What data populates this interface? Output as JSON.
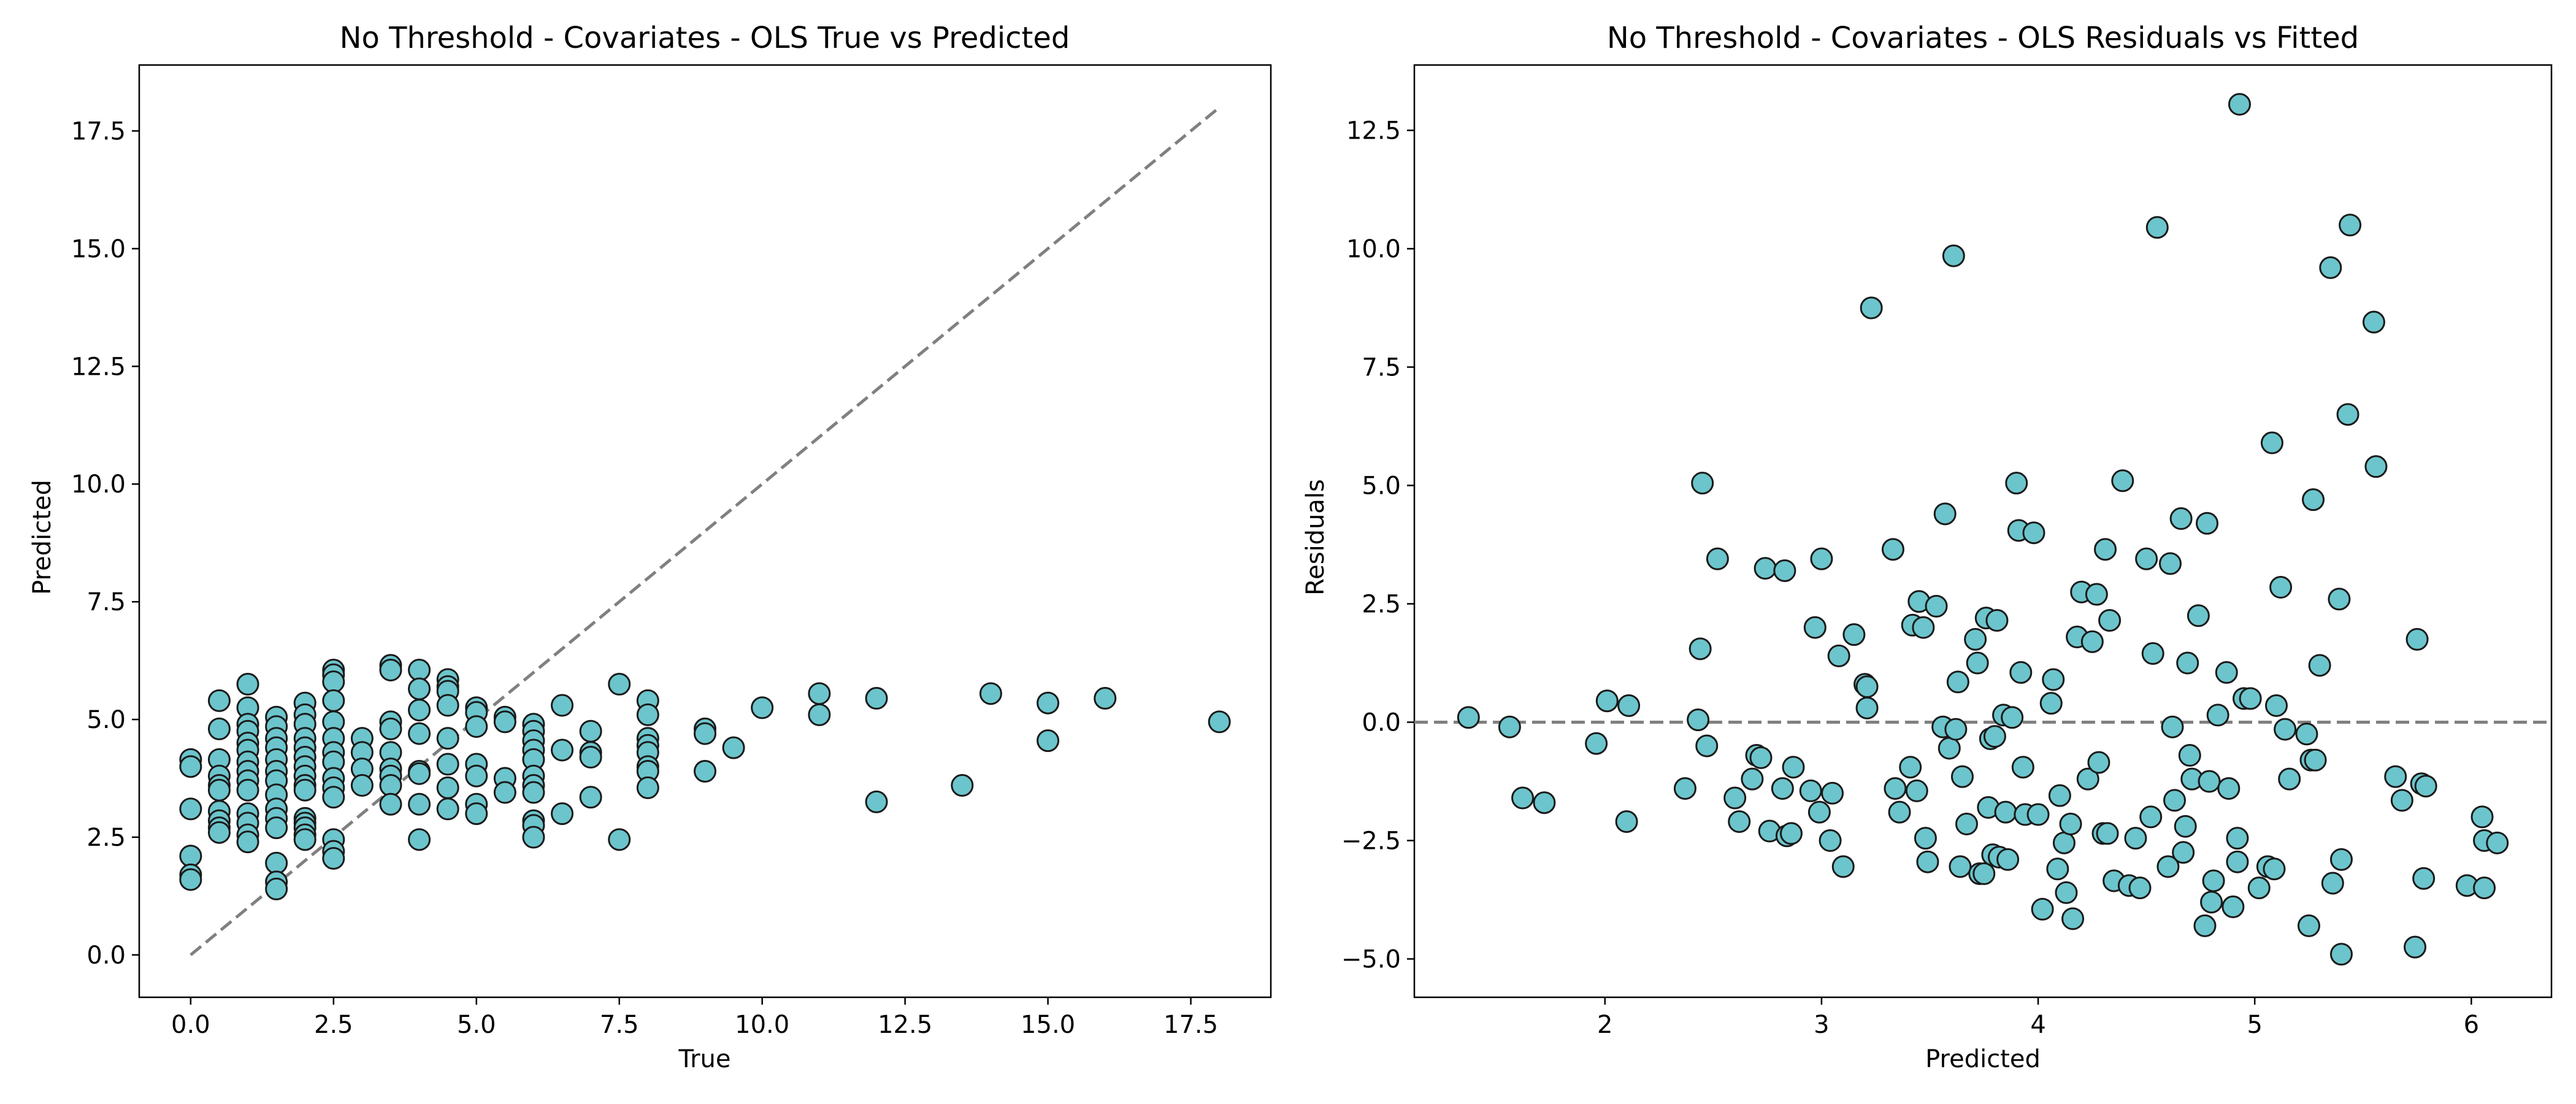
{
  "style": {
    "marker_fill": "#6cc5cc",
    "marker_edge": "#1a1a1a",
    "ref_line": "#808080",
    "axes": "#000000"
  },
  "chart_data": [
    {
      "type": "scatter",
      "title": "No Threshold - Covariates - OLS True vs Predicted",
      "xlabel": "True",
      "ylabel": "Predicted",
      "xlim": [
        -0.9,
        18.9
      ],
      "ylim": [
        -0.9,
        18.9
      ],
      "xticks": [
        0,
        2.5,
        5,
        7.5,
        10,
        12.5,
        15,
        17.5
      ],
      "yticks": [
        0,
        2.5,
        5,
        7.5,
        10,
        12.5,
        15,
        17.5
      ],
      "xtick_labels": [
        "0.0",
        "2.5",
        "5.0",
        "7.5",
        "10.0",
        "12.5",
        "15.0",
        "17.5"
      ],
      "ytick_labels": [
        "0.0",
        "2.5",
        "5.0",
        "7.5",
        "10.0",
        "12.5",
        "15.0",
        "17.5"
      ],
      "reference_line": {
        "from": [
          0,
          0
        ],
        "to": [
          18,
          18
        ],
        "style": "dashed"
      },
      "points": [
        [
          0,
          4.15
        ],
        [
          0,
          4.0
        ],
        [
          0,
          3.1
        ],
        [
          0,
          2.1
        ],
        [
          0,
          1.7
        ],
        [
          0,
          1.6
        ],
        [
          0.5,
          5.4
        ],
        [
          0.5,
          4.8
        ],
        [
          0.5,
          4.15
        ],
        [
          0.5,
          3.8
        ],
        [
          0.5,
          3.6
        ],
        [
          0.5,
          3.5
        ],
        [
          0.5,
          3.05
        ],
        [
          0.5,
          2.85
        ],
        [
          0.5,
          2.7
        ],
        [
          0.5,
          2.6
        ],
        [
          1,
          5.75
        ],
        [
          1,
          5.25
        ],
        [
          1,
          4.9
        ],
        [
          1,
          4.75
        ],
        [
          1,
          4.5
        ],
        [
          1,
          4.35
        ],
        [
          1,
          4.1
        ],
        [
          1,
          3.9
        ],
        [
          1,
          3.7
        ],
        [
          1,
          3.5
        ],
        [
          1,
          3.0
        ],
        [
          1,
          2.8
        ],
        [
          1,
          2.55
        ],
        [
          1,
          2.4
        ],
        [
          1.5,
          5.05
        ],
        [
          1.5,
          4.85
        ],
        [
          1.5,
          4.6
        ],
        [
          1.5,
          4.4
        ],
        [
          1.5,
          4.15
        ],
        [
          1.5,
          3.9
        ],
        [
          1.5,
          3.7
        ],
        [
          1.5,
          3.4
        ],
        [
          1.5,
          3.1
        ],
        [
          1.5,
          2.9
        ],
        [
          1.5,
          2.7
        ],
        [
          1.5,
          1.95
        ],
        [
          1.5,
          1.55
        ],
        [
          1.5,
          1.4
        ],
        [
          2,
          5.35
        ],
        [
          2,
          5.1
        ],
        [
          2,
          4.9
        ],
        [
          2,
          4.6
        ],
        [
          2,
          4.4
        ],
        [
          2,
          4.2
        ],
        [
          2,
          4.0
        ],
        [
          2,
          3.8
        ],
        [
          2,
          3.6
        ],
        [
          2,
          3.5
        ],
        [
          2,
          2.9
        ],
        [
          2,
          2.8
        ],
        [
          2,
          2.7
        ],
        [
          2,
          2.55
        ],
        [
          2,
          2.45
        ],
        [
          2.5,
          6.05
        ],
        [
          2.5,
          5.95
        ],
        [
          2.5,
          5.8
        ],
        [
          2.5,
          5.4
        ],
        [
          2.5,
          4.95
        ],
        [
          2.5,
          4.6
        ],
        [
          2.5,
          4.3
        ],
        [
          2.5,
          4.1
        ],
        [
          2.5,
          3.75
        ],
        [
          2.5,
          3.55
        ],
        [
          2.5,
          3.35
        ],
        [
          2.5,
          2.45
        ],
        [
          2.5,
          2.2
        ],
        [
          2.5,
          2.05
        ],
        [
          3,
          4.6
        ],
        [
          3,
          4.3
        ],
        [
          3,
          3.95
        ],
        [
          3,
          3.6
        ],
        [
          3.5,
          6.15
        ],
        [
          3.5,
          6.05
        ],
        [
          3.5,
          4.95
        ],
        [
          3.5,
          4.8
        ],
        [
          3.5,
          4.3
        ],
        [
          3.5,
          3.95
        ],
        [
          3.5,
          3.8
        ],
        [
          3.5,
          3.6
        ],
        [
          3.5,
          3.2
        ],
        [
          4,
          6.05
        ],
        [
          4,
          5.65
        ],
        [
          4,
          5.2
        ],
        [
          4,
          4.7
        ],
        [
          4,
          3.9
        ],
        [
          4,
          3.85
        ],
        [
          4,
          3.2
        ],
        [
          4,
          2.45
        ],
        [
          4.5,
          5.85
        ],
        [
          4.5,
          5.7
        ],
        [
          4.5,
          5.6
        ],
        [
          4.5,
          5.3
        ],
        [
          4.5,
          4.6
        ],
        [
          4.5,
          4.05
        ],
        [
          4.5,
          3.55
        ],
        [
          4.5,
          3.1
        ],
        [
          5,
          5.25
        ],
        [
          5,
          5.15
        ],
        [
          5,
          4.85
        ],
        [
          5,
          4.05
        ],
        [
          5,
          3.8
        ],
        [
          5,
          3.2
        ],
        [
          5,
          3.0
        ],
        [
          5.5,
          5.05
        ],
        [
          5.5,
          4.95
        ],
        [
          5.5,
          3.75
        ],
        [
          5.5,
          3.45
        ],
        [
          6,
          4.9
        ],
        [
          6,
          4.75
        ],
        [
          6,
          4.55
        ],
        [
          6,
          4.35
        ],
        [
          6,
          4.15
        ],
        [
          6,
          3.8
        ],
        [
          6,
          3.6
        ],
        [
          6,
          3.45
        ],
        [
          6,
          2.85
        ],
        [
          6,
          2.75
        ],
        [
          6,
          2.5
        ],
        [
          6.5,
          5.3
        ],
        [
          6.5,
          4.35
        ],
        [
          6.5,
          3.0
        ],
        [
          7,
          4.75
        ],
        [
          7,
          4.3
        ],
        [
          7,
          4.2
        ],
        [
          7,
          3.35
        ],
        [
          7.5,
          5.75
        ],
        [
          7.5,
          2.45
        ],
        [
          8,
          5.4
        ],
        [
          8,
          5.1
        ],
        [
          8,
          4.6
        ],
        [
          8,
          4.45
        ],
        [
          8,
          4.3
        ],
        [
          8,
          4.0
        ],
        [
          8,
          3.9
        ],
        [
          8,
          3.55
        ],
        [
          9,
          4.8
        ],
        [
          9,
          4.7
        ],
        [
          9,
          3.9
        ],
        [
          9.5,
          4.4
        ],
        [
          10,
          5.25
        ],
        [
          11,
          5.55
        ],
        [
          11,
          5.1
        ],
        [
          12,
          5.45
        ],
        [
          12,
          3.25
        ],
        [
          13.5,
          3.6
        ],
        [
          14,
          5.55
        ],
        [
          15,
          5.35
        ],
        [
          15,
          4.55
        ],
        [
          16,
          5.45
        ],
        [
          18,
          4.95
        ]
      ]
    },
    {
      "type": "scatter",
      "title": "No Threshold - Covariates - OLS Residuals vs Fitted",
      "xlabel": "Predicted",
      "ylabel": "Residuals",
      "xlim": [
        1.12,
        6.37
      ],
      "ylim": [
        -5.81,
        13.88
      ],
      "xticks": [
        2,
        3,
        4,
        5,
        6
      ],
      "yticks": [
        -5,
        -2.5,
        0,
        2.5,
        5,
        7.5,
        10,
        12.5
      ],
      "xtick_labels": [
        "2",
        "3",
        "4",
        "5",
        "6"
      ],
      "ytick_labels": [
        "−5.0",
        "−2.5",
        "0.0",
        "2.5",
        "5.0",
        "7.5",
        "10.0",
        "12.5"
      ],
      "reference_line": {
        "y": 0,
        "style": "dashed"
      },
      "points": [
        [
          1.37,
          0.1
        ],
        [
          1.56,
          -0.1
        ],
        [
          1.62,
          -1.6
        ],
        [
          1.72,
          -1.7
        ],
        [
          1.96,
          -0.45
        ],
        [
          2.01,
          0.45
        ],
        [
          2.1,
          -2.1
        ],
        [
          2.11,
          0.35
        ],
        [
          2.37,
          -1.4
        ],
        [
          2.43,
          0.05
        ],
        [
          2.44,
          1.55
        ],
        [
          2.45,
          5.05
        ],
        [
          2.47,
          -0.5
        ],
        [
          2.52,
          3.45
        ],
        [
          2.6,
          -1.6
        ],
        [
          2.62,
          -2.1
        ],
        [
          2.68,
          -1.2
        ],
        [
          2.7,
          -0.7
        ],
        [
          2.72,
          -0.75
        ],
        [
          2.74,
          3.25
        ],
        [
          2.76,
          -2.3
        ],
        [
          2.82,
          -1.4
        ],
        [
          2.83,
          3.2
        ],
        [
          2.84,
          -2.4
        ],
        [
          2.86,
          -2.35
        ],
        [
          2.87,
          -0.95
        ],
        [
          2.95,
          -1.45
        ],
        [
          2.97,
          2.0
        ],
        [
          2.99,
          -1.9
        ],
        [
          3.0,
          3.45
        ],
        [
          3.04,
          -2.5
        ],
        [
          3.05,
          -1.5
        ],
        [
          3.08,
          1.4
        ],
        [
          3.1,
          -3.05
        ],
        [
          3.15,
          1.85
        ],
        [
          3.2,
          0.8
        ],
        [
          3.21,
          0.75
        ],
        [
          3.21,
          0.3
        ],
        [
          3.23,
          8.75
        ],
        [
          3.33,
          3.65
        ],
        [
          3.34,
          -1.4
        ],
        [
          3.36,
          -1.9
        ],
        [
          3.41,
          -0.95
        ],
        [
          3.42,
          2.05
        ],
        [
          3.44,
          -1.45
        ],
        [
          3.45,
          2.55
        ],
        [
          3.47,
          2.0
        ],
        [
          3.48,
          -2.45
        ],
        [
          3.49,
          -2.95
        ],
        [
          3.53,
          2.45
        ],
        [
          3.56,
          -0.1
        ],
        [
          3.57,
          4.4
        ],
        [
          3.59,
          -0.55
        ],
        [
          3.61,
          9.85
        ],
        [
          3.62,
          -0.15
        ],
        [
          3.63,
          0.85
        ],
        [
          3.64,
          -3.05
        ],
        [
          3.65,
          -1.15
        ],
        [
          3.67,
          -2.15
        ],
        [
          3.71,
          1.75
        ],
        [
          3.72,
          1.25
        ],
        [
          3.73,
          -3.2
        ],
        [
          3.75,
          -3.2
        ],
        [
          3.76,
          2.2
        ],
        [
          3.77,
          -1.8
        ],
        [
          3.78,
          -0.35
        ],
        [
          3.79,
          -2.8
        ],
        [
          3.8,
          -0.3
        ],
        [
          3.81,
          2.15
        ],
        [
          3.82,
          -2.85
        ],
        [
          3.84,
          0.15
        ],
        [
          3.85,
          -1.9
        ],
        [
          3.86,
          -2.9
        ],
        [
          3.88,
          0.1
        ],
        [
          3.9,
          5.05
        ],
        [
          3.91,
          4.05
        ],
        [
          3.92,
          1.05
        ],
        [
          3.93,
          -0.95
        ],
        [
          3.94,
          -1.95
        ],
        [
          3.98,
          4.0
        ],
        [
          4.0,
          -1.95
        ],
        [
          4.02,
          -3.95
        ],
        [
          4.06,
          0.4
        ],
        [
          4.07,
          0.9
        ],
        [
          4.09,
          -3.1
        ],
        [
          4.1,
          -1.55
        ],
        [
          4.12,
          -2.55
        ],
        [
          4.13,
          -3.6
        ],
        [
          4.15,
          -2.15
        ],
        [
          4.16,
          -4.15
        ],
        [
          4.18,
          1.8
        ],
        [
          4.2,
          2.75
        ],
        [
          4.23,
          -1.2
        ],
        [
          4.25,
          1.7
        ],
        [
          4.27,
          2.7
        ],
        [
          4.28,
          -0.85
        ],
        [
          4.3,
          -2.35
        ],
        [
          4.31,
          3.65
        ],
        [
          4.32,
          -2.35
        ],
        [
          4.33,
          2.15
        ],
        [
          4.35,
          -3.35
        ],
        [
          4.39,
          5.1
        ],
        [
          4.42,
          -3.45
        ],
        [
          4.45,
          -2.45
        ],
        [
          4.47,
          -3.5
        ],
        [
          4.5,
          3.45
        ],
        [
          4.52,
          -2.0
        ],
        [
          4.53,
          1.45
        ],
        [
          4.55,
          10.45
        ],
        [
          4.6,
          -3.05
        ],
        [
          4.61,
          3.35
        ],
        [
          4.62,
          -0.1
        ],
        [
          4.63,
          -1.65
        ],
        [
          4.66,
          4.3
        ],
        [
          4.67,
          -2.75
        ],
        [
          4.68,
          -2.2
        ],
        [
          4.69,
          1.25
        ],
        [
          4.7,
          -0.7
        ],
        [
          4.71,
          -1.2
        ],
        [
          4.74,
          2.25
        ],
        [
          4.77,
          -4.3
        ],
        [
          4.78,
          4.2
        ],
        [
          4.79,
          -1.25
        ],
        [
          4.8,
          -3.8
        ],
        [
          4.81,
          -3.35
        ],
        [
          4.83,
          0.15
        ],
        [
          4.87,
          1.05
        ],
        [
          4.88,
          -1.4
        ],
        [
          4.9,
          -3.9
        ],
        [
          4.92,
          -2.45
        ],
        [
          4.92,
          -2.95
        ],
        [
          4.93,
          13.05
        ],
        [
          4.95,
          0.5
        ],
        [
          4.98,
          0.5
        ],
        [
          5.02,
          -3.5
        ],
        [
          5.06,
          -3.05
        ],
        [
          5.08,
          5.9
        ],
        [
          5.09,
          -3.1
        ],
        [
          5.1,
          0.35
        ],
        [
          5.12,
          2.85
        ],
        [
          5.14,
          -0.15
        ],
        [
          5.16,
          -1.2
        ],
        [
          5.24,
          -0.25
        ],
        [
          5.25,
          -4.3
        ],
        [
          5.26,
          -0.8
        ],
        [
          5.27,
          4.7
        ],
        [
          5.28,
          -0.8
        ],
        [
          5.3,
          1.2
        ],
        [
          5.35,
          9.6
        ],
        [
          5.36,
          -3.4
        ],
        [
          5.39,
          2.6
        ],
        [
          5.4,
          -4.9
        ],
        [
          5.4,
          -2.9
        ],
        [
          5.43,
          6.5
        ],
        [
          5.44,
          10.5
        ],
        [
          5.55,
          8.45
        ],
        [
          5.56,
          5.4
        ],
        [
          5.65,
          -1.15
        ],
        [
          5.68,
          -1.65
        ],
        [
          5.74,
          -4.75
        ],
        [
          5.75,
          1.75
        ],
        [
          5.77,
          -1.3
        ],
        [
          5.78,
          -3.3
        ],
        [
          5.79,
          -1.35
        ],
        [
          5.98,
          -3.45
        ],
        [
          6.05,
          -2.0
        ],
        [
          6.06,
          -2.5
        ],
        [
          6.06,
          -3.5
        ],
        [
          6.12,
          -2.55
        ]
      ]
    }
  ]
}
